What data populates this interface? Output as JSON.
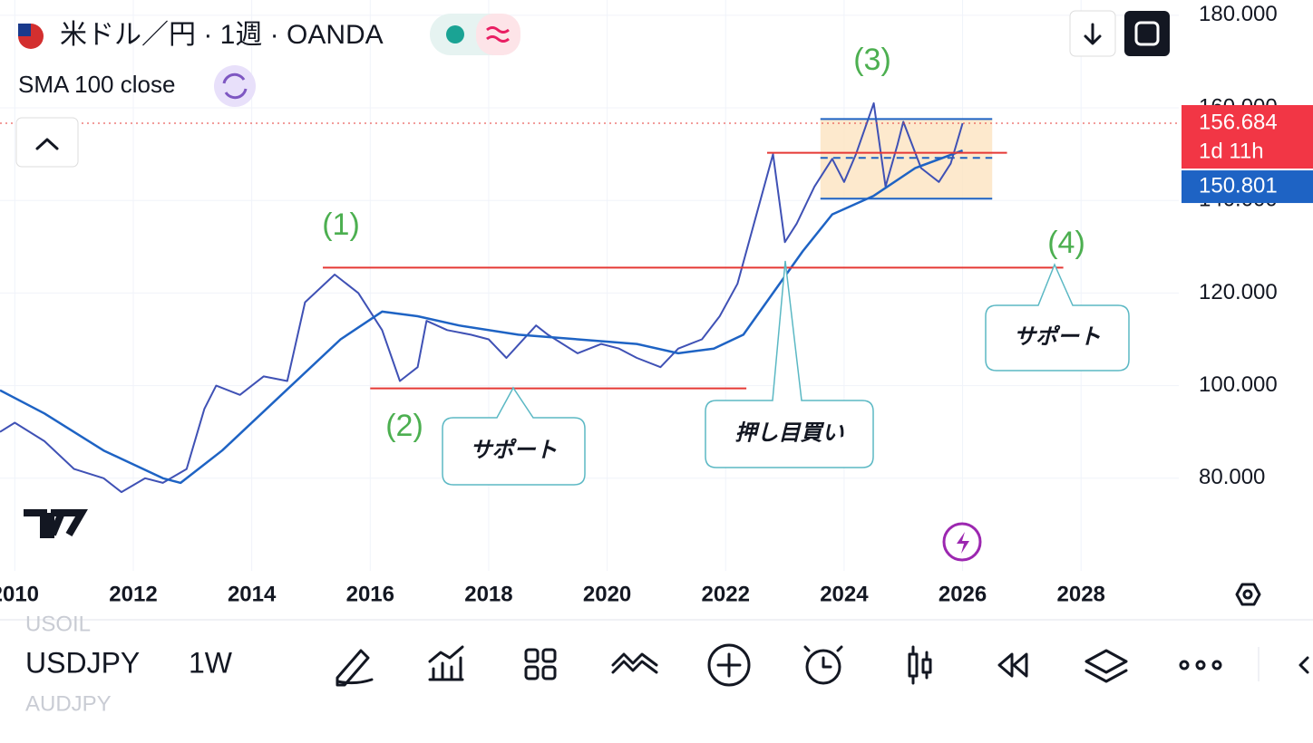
{
  "header": {
    "symbol_title": "米ドル／円 · 1週 · OANDA",
    "indicator": "SMA 100 close"
  },
  "chart_data": {
    "type": "line",
    "xlim": [
      2009.75,
      2029.65
    ],
    "xticks": [
      2010,
      2012,
      2014,
      2016,
      2018,
      2020,
      2022,
      2024,
      2026,
      2028
    ],
    "ylim": [
      60,
      183.3
    ],
    "yticks": [
      {
        "value": 80,
        "label": "80.000"
      },
      {
        "value": 100,
        "label": "100.000"
      },
      {
        "value": 120,
        "label": "120.000"
      },
      {
        "value": 140,
        "label": "140.000"
      },
      {
        "value": 160,
        "label": "160.000"
      },
      {
        "value": 180,
        "label": "180.000"
      }
    ],
    "grid": true,
    "series": [
      {
        "name": "USDJPY",
        "color": "#3f51b5",
        "x": [
          2009.75,
          2010.0,
          2010.5,
          2011.0,
          2011.5,
          2011.8,
          2012.2,
          2012.5,
          2012.9,
          2013.2,
          2013.4,
          2013.8,
          2014.2,
          2014.6,
          2014.9,
          2015.4,
          2015.8,
          2016.2,
          2016.5,
          2016.8,
          2016.95,
          2017.3,
          2017.7,
          2018.0,
          2018.3,
          2018.8,
          2019.0,
          2019.5,
          2019.9,
          2020.2,
          2020.5,
          2020.9,
          2021.2,
          2021.6,
          2021.9,
          2022.2,
          2022.5,
          2022.8,
          2023.0,
          2023.2,
          2023.5,
          2023.8,
          2024.0,
          2024.2,
          2024.5,
          2024.7,
          2024.9,
          2025.0,
          2025.3,
          2025.6,
          2025.8,
          2026.0
        ],
        "values": [
          90,
          92,
          88,
          82,
          80,
          77,
          80,
          79,
          82,
          95,
          100,
          98,
          102,
          101,
          118,
          124,
          120,
          112,
          101,
          104,
          114,
          112,
          111,
          110,
          106,
          113,
          111,
          107,
          109,
          108,
          106,
          104,
          108,
          110,
          115,
          122,
          136,
          150,
          131,
          135,
          143,
          149,
          144,
          150,
          161,
          143,
          152,
          157,
          147,
          144,
          148,
          156.684
        ]
      },
      {
        "name": "SMA 100",
        "color": "#1e63c4",
        "x": [
          2009.75,
          2010.5,
          2011.5,
          2012.5,
          2012.8,
          2013.5,
          2014.5,
          2015.5,
          2016.2,
          2016.8,
          2017.5,
          2018.5,
          2019.5,
          2020.5,
          2021.2,
          2021.8,
          2022.3,
          2022.8,
          2023.3,
          2023.8,
          2024.5,
          2025.2,
          2026.0
        ],
        "values": [
          99,
          94,
          86,
          80,
          79,
          86,
          98,
          110,
          116,
          115,
          113,
          111,
          110,
          109,
          107,
          108,
          111,
          120,
          129,
          137,
          141,
          147,
          150.801
        ]
      }
    ],
    "countdown": "1d 11h",
    "levels": [
      {
        "value": 125.5,
        "x": [
          2015.2,
          2027.7
        ],
        "color": "#e53935"
      },
      {
        "value": 99.4,
        "x": [
          2016.0,
          2022.35
        ],
        "color": "#e53935"
      },
      {
        "value": 150.3,
        "x": [
          2022.7,
          2026.75
        ],
        "color": "#e53935"
      },
      {
        "value": 157.6,
        "x": [
          2023.6,
          2026.5
        ],
        "color": "#1e63c4"
      },
      {
        "value": 140.4,
        "x": [
          2023.6,
          2026.5
        ],
        "color": "#1e63c4"
      }
    ],
    "range_box": {
      "x": [
        2023.6,
        2026.5
      ],
      "y": [
        140.4,
        157.6
      ],
      "mid": 149.2
    },
    "annotations": [
      "(1)",
      "(2)",
      "(3)",
      "(4)",
      "サポート",
      "サポート",
      "押し目買い"
    ]
  },
  "toolbar": {
    "symbol": "USDJPY",
    "interval": "1W",
    "above": "USOIL",
    "below": "AUDJPY"
  }
}
